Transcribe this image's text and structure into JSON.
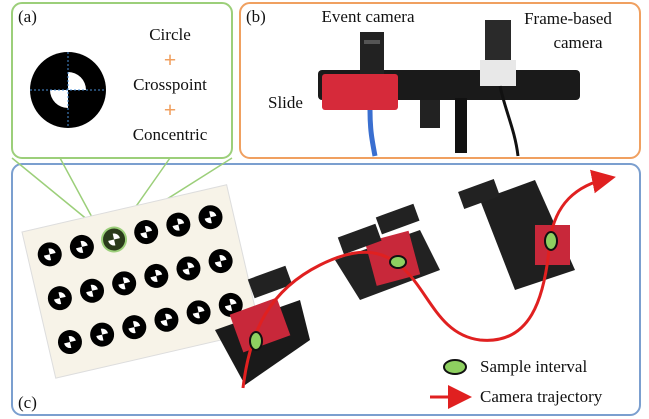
{
  "panel_a": {
    "label": "(a)",
    "items": [
      "Circle",
      "Crosspoint",
      "Concentric"
    ]
  },
  "panel_b": {
    "label": "(b)",
    "event_camera": "Event camera",
    "frame_based_camera": [
      "Frame-based",
      "camera"
    ],
    "slide": "Slide"
  },
  "panel_c": {
    "label": "(c)",
    "legend": {
      "sample_interval": "Sample interval",
      "camera_trajectory": "Camera trajectory"
    }
  }
}
